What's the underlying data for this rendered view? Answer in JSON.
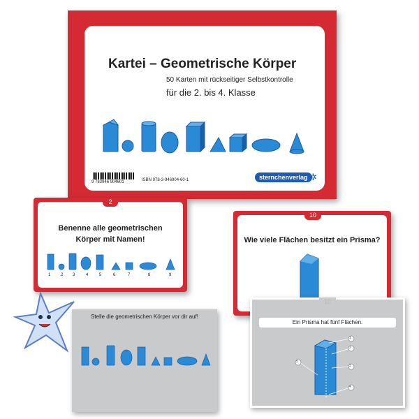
{
  "cover": {
    "title": "Kartei – Geometrische Körper",
    "subtitle": "50 Karten mit rückseitiger Selbstkontrolle",
    "grade": "für die 2. bis 4. Klasse",
    "barcode_left": "9  783946  904601",
    "isbn": "ISBN 978-3-946904-60-1",
    "publisher": "sternchenverlag",
    "shapes": [
      "prism-tall",
      "sphere",
      "cylinder",
      "egg",
      "cuboid-tall",
      "pyramid",
      "cube",
      "ellipsoid",
      "cone"
    ]
  },
  "card_left_front": {
    "number": "2",
    "question": "Benenne alle geometrischen Körper mit Namen!",
    "labels": [
      "1",
      "2",
      "3",
      "4",
      "5",
      "6",
      "7",
      "8",
      "9"
    ]
  },
  "card_left_back": {
    "instruction": "Stelle die geometrischen Körper vor dir auf!"
  },
  "card_right_front": {
    "number": "10",
    "question": "Wie viele Flächen besitzt ein Prisma?"
  },
  "card_right_back": {
    "number": "10",
    "answer": "Ein Prisma hat fünf Flächen.",
    "face_labels": [
      "1",
      "2",
      "3",
      "4",
      "5"
    ]
  },
  "colors": {
    "red": "#d42a33",
    "shape_blue": "#2a8ad6",
    "shape_dark": "#1a5fa8",
    "gray": "#c9cacc"
  }
}
